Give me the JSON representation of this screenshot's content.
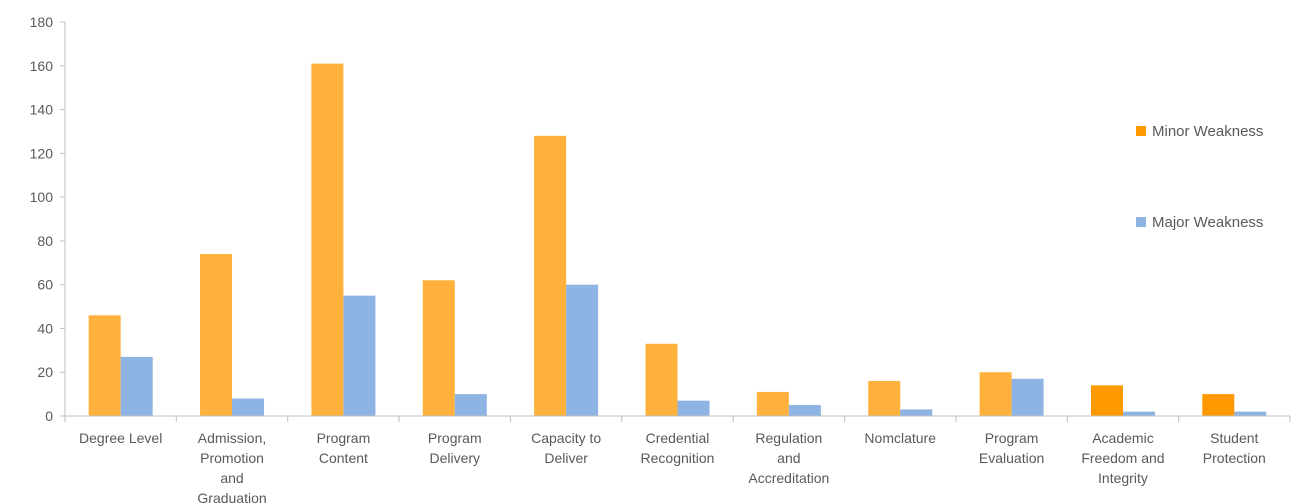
{
  "chart_data": {
    "type": "bar",
    "title": "",
    "xlabel": "",
    "ylabel": "",
    "ylim": [
      0,
      180
    ],
    "yticks": [
      0,
      20,
      40,
      60,
      80,
      100,
      120,
      140,
      160,
      180
    ],
    "grid": false,
    "legend_position": "right",
    "categories": [
      "Degree Level",
      "Admission, Promotion and Graduation",
      "Program Content",
      "Program Delivery",
      "Capacity to Deliver",
      "Credential Recognition",
      "Regulation and Accreditation",
      "Nomclature",
      "Program Evaluation",
      "Academic Freedom and Integrity",
      "Student Protection"
    ],
    "category_label_lines": [
      [
        "Degree Level"
      ],
      [
        "Admission,",
        "Promotion",
        "and",
        "Graduation"
      ],
      [
        "Program",
        "Content"
      ],
      [
        "Program",
        "Delivery"
      ],
      [
        "Capacity to",
        "Deliver"
      ],
      [
        "Credential",
        "Recognition"
      ],
      [
        "Regulation",
        "and",
        "Accreditation"
      ],
      [
        "Nomclature"
      ],
      [
        "Program",
        "Evaluation"
      ],
      [
        "Academic",
        "Freedom and",
        "Integrity"
      ],
      [
        "Student",
        "Protection"
      ]
    ],
    "series": [
      {
        "name": "Minor Weakness",
        "color": "#FFB13B",
        "legend_color": "#FF9900",
        "point_colors": [
          "#FFB13B",
          "#FFB13B",
          "#FFB13B",
          "#FFB13B",
          "#FFB13B",
          "#FFB13B",
          "#FFB13B",
          "#FFB13B",
          "#FFB13B",
          "#FF9900",
          "#FF9900"
        ],
        "values": [
          46,
          74,
          161,
          62,
          128,
          33,
          11,
          16,
          20,
          14,
          10
        ]
      },
      {
        "name": "Major Weakness",
        "color": "#8DB4E2",
        "legend_color": "#8DB4E2",
        "values": [
          27,
          8,
          55,
          10,
          60,
          7,
          5,
          3,
          17,
          2,
          2
        ]
      }
    ]
  }
}
